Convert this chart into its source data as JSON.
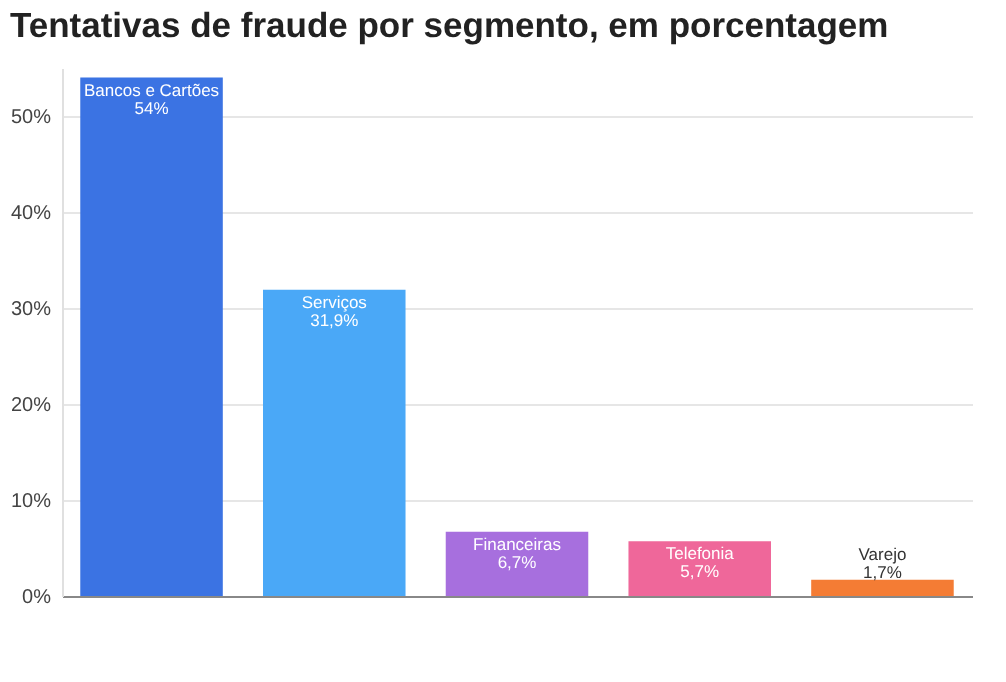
{
  "chart_data": {
    "type": "bar",
    "title": "Tentativas de fraude por segmento, em porcentagem",
    "categories": [
      "Bancos e Cartões",
      "Serviços",
      "Financeiras",
      "Telefonia",
      "Varejo"
    ],
    "values": [
      54,
      31.9,
      6.7,
      5.7,
      1.7
    ],
    "colors": [
      "#3b73e3",
      "#4aa8f7",
      "#a76fde",
      "#ef679a",
      "#f47c34"
    ],
    "value_labels": [
      "54%",
      "31,9%",
      "6,7%",
      "5,7%",
      "1,7%"
    ],
    "ylim": [
      0,
      55
    ],
    "yticks": [
      {
        "value": 0,
        "label": "0%"
      },
      {
        "value": 10,
        "label": "10%"
      },
      {
        "value": 20,
        "label": "20%"
      },
      {
        "value": 30,
        "label": "30%"
      },
      {
        "value": 40,
        "label": "40%"
      },
      {
        "value": 50,
        "label": "50%"
      }
    ],
    "grid": "y",
    "tick_labels": "y"
  }
}
